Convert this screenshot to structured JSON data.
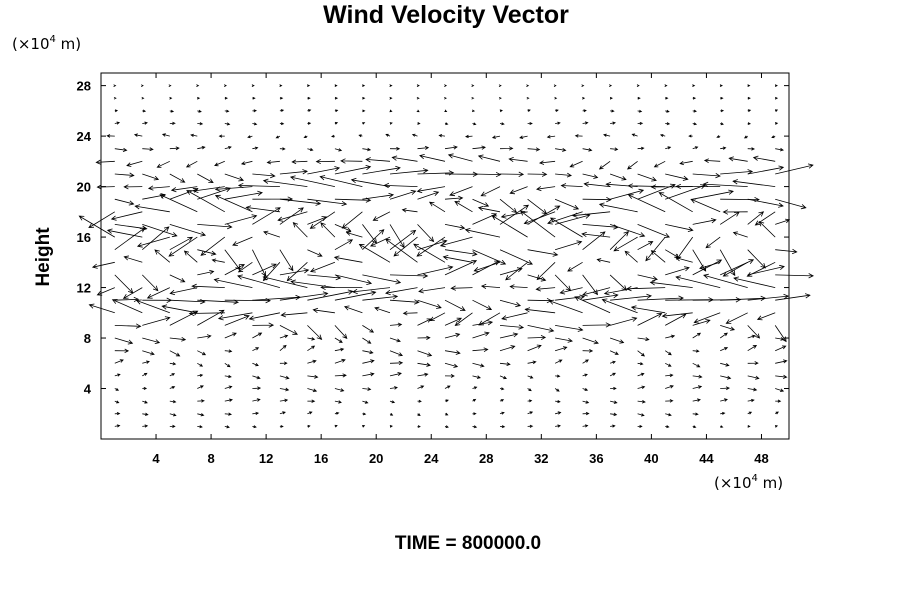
{
  "chart_data": {
    "type": "vector-field",
    "title": "Wind Velocity Vector",
    "ylabel": "Height",
    "xlabel": "",
    "unit": {
      "prefix": "(×10",
      "exponent": "4",
      "suffix": " m)"
    },
    "footer": "TIME = 800000.0",
    "xlim": [
      0,
      50
    ],
    "ylim": [
      0,
      29
    ],
    "x_ticks": [
      4,
      8,
      12,
      16,
      20,
      24,
      28,
      32,
      36,
      40,
      44,
      48
    ],
    "y_ticks": [
      4,
      8,
      12,
      16,
      20,
      24,
      28
    ],
    "x_tick_labels": [
      "4",
      "8",
      "12",
      "16",
      "20",
      "24",
      "28",
      "32",
      "36",
      "40",
      "44",
      "48"
    ],
    "y_tick_labels": [
      "4",
      "8",
      "12",
      "16",
      "20",
      "24",
      "28"
    ],
    "grid": false,
    "vector_color": "#000000",
    "x_spacing": 2,
    "layers": [
      {
        "y": 1,
        "u": 0.4,
        "v": 0.05
      },
      {
        "y": 2,
        "u": 0.5,
        "v": 0.1
      },
      {
        "y": 3,
        "u": 0.6,
        "v": 0.1
      },
      {
        "y": 4,
        "u": 0.7,
        "v": 0.15
      },
      {
        "y": 5,
        "u": 0.9,
        "v": 0.15
      },
      {
        "y": 6,
        "u": 1.0,
        "v": 0.2
      },
      {
        "y": 7,
        "u": 1.2,
        "v": 0.3
      },
      {
        "y": 8,
        "u": 1.4,
        "v": 0.3
      },
      {
        "y": 9,
        "u": 2.2,
        "v": 0.6
      },
      {
        "y": 10,
        "u": -2.8,
        "v": 0.6
      },
      {
        "y": 11,
        "u": 3.8,
        "v": 0.3
      },
      {
        "y": 12,
        "u": -3.5,
        "v": 0.4
      },
      {
        "y": 13,
        "u": 3.0,
        "v": 0.8
      },
      {
        "y": 14,
        "u": -2.5,
        "v": 1.0
      },
      {
        "y": 15,
        "u": 2.6,
        "v": 1.2
      },
      {
        "y": 16,
        "u": -2.8,
        "v": 1.2
      },
      {
        "y": 17,
        "u": 2.8,
        "v": 1.0
      },
      {
        "y": 18,
        "u": -3.0,
        "v": 0.9
      },
      {
        "y": 19,
        "u": 3.2,
        "v": 0.6
      },
      {
        "y": 20,
        "u": -3.5,
        "v": 0.3
      },
      {
        "y": 21,
        "u": 3.0,
        "v": 0.2
      },
      {
        "y": 22,
        "u": -2.0,
        "v": 0.15
      },
      {
        "y": 23,
        "u": 1.0,
        "v": 0.1
      },
      {
        "y": 24,
        "u": -0.6,
        "v": 0.1
      },
      {
        "y": 25,
        "u": 0.4,
        "v": 0.05
      },
      {
        "y": 26,
        "u": 0.3,
        "v": 0.05
      },
      {
        "y": 27,
        "u": 0.2,
        "v": 0.0
      },
      {
        "y": 28,
        "u": 0.15,
        "v": 0.0
      }
    ]
  }
}
